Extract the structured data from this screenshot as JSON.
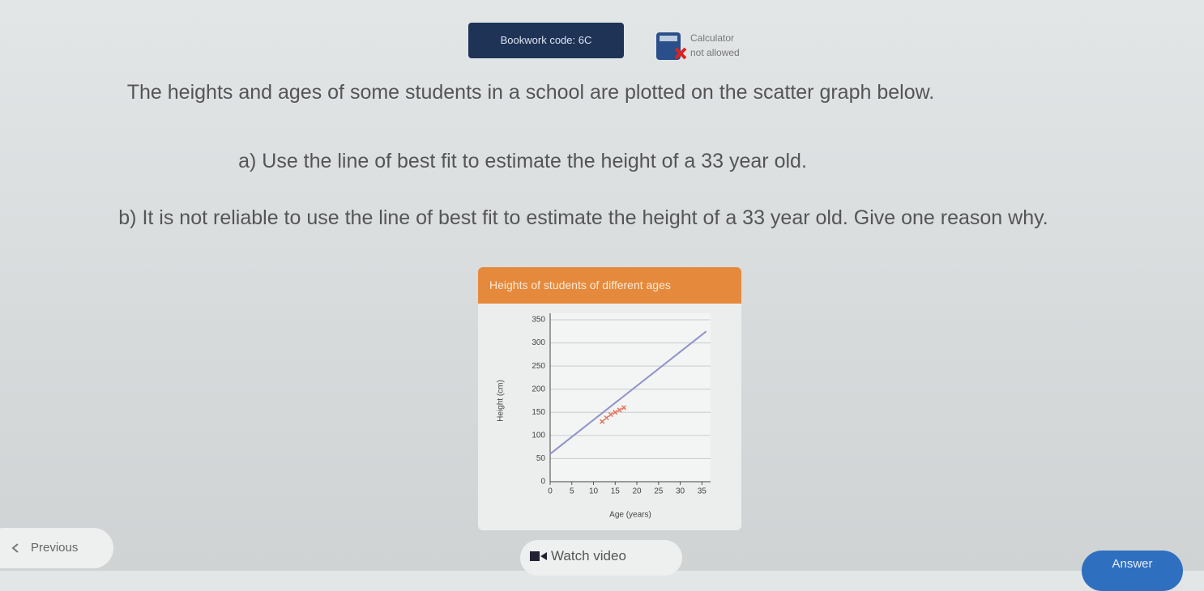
{
  "header": {
    "bookwork_code": "Bookwork code: 6C",
    "calculator": "Calculator",
    "calculator_note": "not allowed"
  },
  "question": {
    "intro": "The heights and ages of some students in a school are plotted on the scatter graph below.",
    "part_a": "a) Use the line of best fit to estimate the height of a 33 year old.",
    "part_b": "b) It is not reliable to use the line of best fit to estimate the height of a 33 year old. Give one reason why."
  },
  "chart_data": {
    "type": "scatter",
    "title": "Heights of students of different ages",
    "x_label": "Age (years)",
    "y_label": "Height (cm)",
    "points": {
      "x": [
        12,
        13,
        14,
        15,
        16,
        17
      ],
      "y": [
        130,
        138,
        145,
        150,
        155,
        160
      ],
      "color": "#e0745a"
    },
    "best_fit": {
      "x": [
        0,
        36
      ],
      "y": [
        60,
        325
      ],
      "color": "#8f93c8"
    },
    "xlim": [
      0,
      37
    ],
    "ylim": [
      0,
      350
    ],
    "xticks": [
      0,
      5,
      10,
      15,
      20,
      25,
      30,
      35
    ],
    "yticks": [
      0,
      50,
      100,
      150,
      200,
      250,
      300,
      350
    ],
    "grid": true
  },
  "footer": {
    "previous": "Previous",
    "watch_video": "Watch video",
    "answer": "Answer"
  }
}
